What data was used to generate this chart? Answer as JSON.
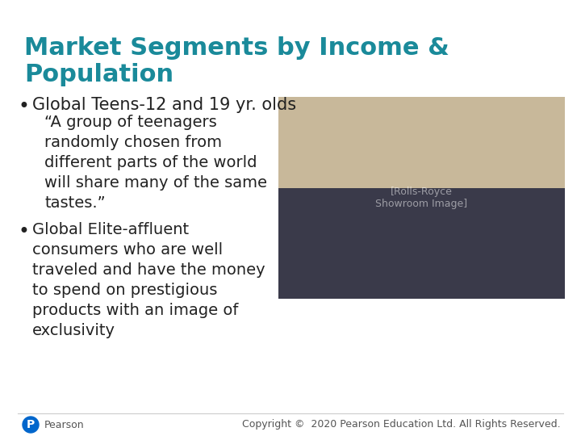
{
  "title_line1": "Market Segments by Income &",
  "title_line2": "Population",
  "title_color": "#1a8a9a",
  "bullet1": "Global Teens-12 and 19 yr. olds",
  "quote": "“A group of teenagers\nrandomly chosen from\ndifferent parts of the world\nwill share many of the same\ntastes.”",
  "bullet2": "Global Elite-affluent\nconsumers who are well\ntraveled and have the money\nto spend on prestigious\nproducts with an image of\nexclusivity",
  "bullet_color": "#222222",
  "text_color": "#222222",
  "background_color": "#ffffff",
  "footer_text": "Copyright ©  2020 Pearson Education Ltd. All Rights Reserved.",
  "footer_color": "#555555",
  "pearson_text": "Pearson",
  "title_fontsize": 22,
  "bullet_fontsize": 15,
  "body_fontsize": 14,
  "footer_fontsize": 9
}
